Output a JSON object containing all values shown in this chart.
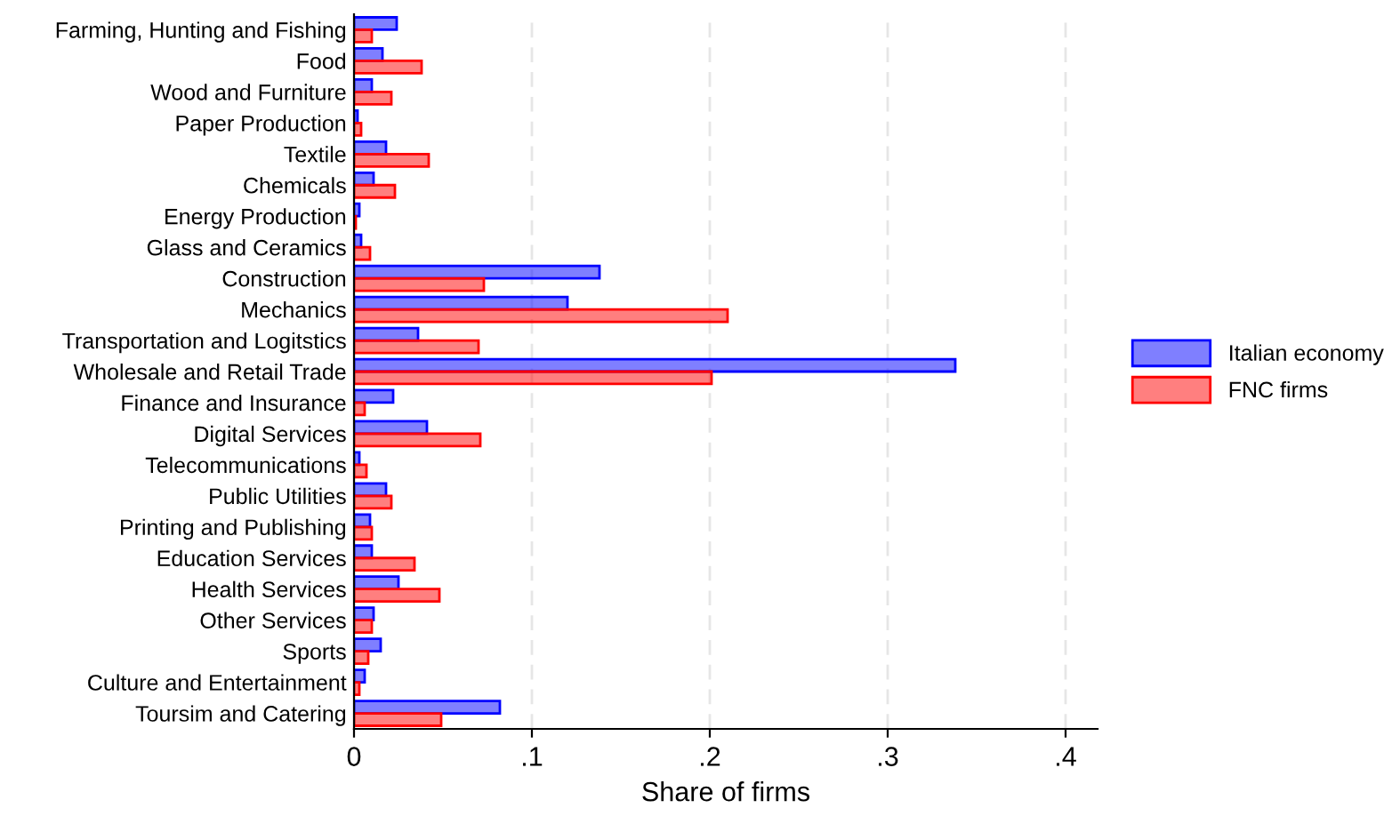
{
  "chart_data": {
    "type": "bar",
    "orientation": "horizontal",
    "xlabel": "Share of firms",
    "categories": [
      "Farming, Hunting and Fishing",
      "Food",
      "Wood and Furniture",
      "Paper Production",
      "Textile",
      "Chemicals",
      "Energy Production",
      "Glass and Ceramics",
      "Construction",
      "Mechanics",
      "Transportation and Logitstics",
      "Wholesale and Retail Trade",
      "Finance and Insurance",
      "Digital Services",
      "Telecommunications",
      "Public Utilities",
      "Printing and Publishing",
      "Education Services",
      "Health Services",
      "Other Services",
      "Sports",
      "Culture and Entertainment",
      "Toursim and Catering"
    ],
    "series": [
      {
        "name": "Italian economy",
        "color": "#0000ff",
        "values": [
          0.024,
          0.016,
          0.01,
          0.002,
          0.018,
          0.011,
          0.003,
          0.004,
          0.138,
          0.12,
          0.036,
          0.338,
          0.022,
          0.041,
          0.003,
          0.018,
          0.009,
          0.01,
          0.025,
          0.011,
          0.015,
          0.006,
          0.082
        ]
      },
      {
        "name": "FNC firms",
        "color": "#ff0000",
        "values": [
          0.01,
          0.038,
          0.021,
          0.004,
          0.042,
          0.023,
          0.001,
          0.009,
          0.073,
          0.21,
          0.07,
          0.201,
          0.006,
          0.071,
          0.007,
          0.021,
          0.01,
          0.034,
          0.048,
          0.01,
          0.008,
          0.003,
          0.049
        ]
      }
    ],
    "xlim": [
      0,
      0.418
    ],
    "xticks": [
      0,
      {
        "value": 0.1,
        "label": ".1"
      },
      {
        "value": 0.2,
        "label": ".2"
      },
      {
        "value": 0.3,
        "label": ".3"
      },
      {
        "value": 0.4,
        "label": ".4"
      }
    ],
    "grid": "x",
    "legend": "right"
  }
}
